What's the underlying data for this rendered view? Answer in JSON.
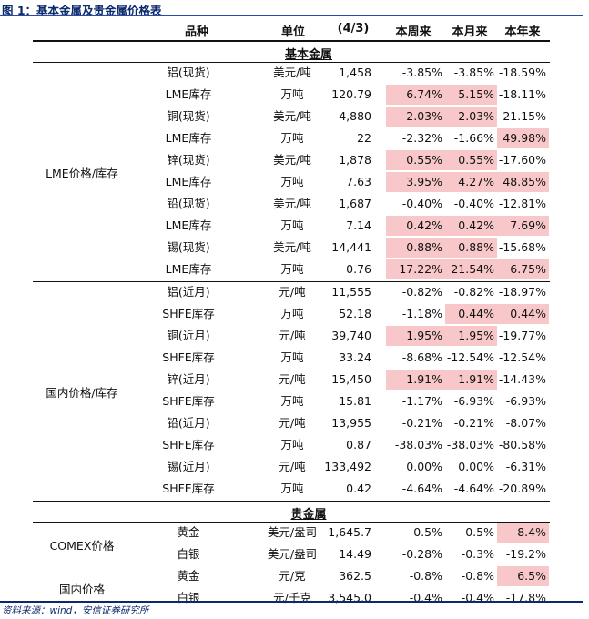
{
  "figure_title": "图 1：基本金属及贵金属价格表",
  "source": "资料来源：wind，安信证券研究所",
  "header": {
    "name": "品种",
    "unit": "单位",
    "date": "(4/3)",
    "week": "本周来",
    "month": "本月来",
    "year": "本年来"
  },
  "sections": {
    "base": "基本金属",
    "precious": "贵金属"
  },
  "highlight_color": "#f7c7c9",
  "groups": {
    "lme": "LME价格/库存",
    "domestic": "国内价格/库存",
    "comex": "COMEX价格",
    "domestic_price": "国内价格"
  },
  "lme_rows": [
    {
      "name": "铝(现货)",
      "unit": "美元/吨",
      "price": "1,458",
      "week": "-3.85%",
      "month": "-3.85%",
      "year": "-18.59%",
      "hl": [
        false,
        false,
        false
      ]
    },
    {
      "name": "LME库存",
      "unit": "万吨",
      "price": "120.79",
      "week": "6.74%",
      "month": "5.15%",
      "year": "-18.11%",
      "hl": [
        true,
        true,
        false
      ]
    },
    {
      "name": "铜(现货)",
      "unit": "美元/吨",
      "price": "4,880",
      "week": "2.03%",
      "month": "2.03%",
      "year": "-21.15%",
      "hl": [
        true,
        true,
        false
      ]
    },
    {
      "name": "LME库存",
      "unit": "万吨",
      "price": "22",
      "week": "-2.32%",
      "month": "-1.66%",
      "year": "49.98%",
      "hl": [
        false,
        false,
        true
      ]
    },
    {
      "name": "锌(现货)",
      "unit": "美元/吨",
      "price": "1,878",
      "week": "0.55%",
      "month": "0.55%",
      "year": "-17.60%",
      "hl": [
        true,
        true,
        false
      ]
    },
    {
      "name": "LME库存",
      "unit": "万吨",
      "price": "7.63",
      "week": "3.95%",
      "month": "4.27%",
      "year": "48.85%",
      "hl": [
        true,
        true,
        true
      ]
    },
    {
      "name": "铅(现货)",
      "unit": "美元/吨",
      "price": "1,687",
      "week": "-0.40%",
      "month": "-0.40%",
      "year": "-12.81%",
      "hl": [
        false,
        false,
        false
      ]
    },
    {
      "name": "LME库存",
      "unit": "万吨",
      "price": "7.14",
      "week": "0.42%",
      "month": "0.42%",
      "year": "7.69%",
      "hl": [
        true,
        true,
        true
      ]
    },
    {
      "name": "锡(现货)",
      "unit": "美元/吨",
      "price": "14,441",
      "week": "0.88%",
      "month": "0.88%",
      "year": "-15.68%",
      "hl": [
        true,
        true,
        false
      ]
    },
    {
      "name": "LME库存",
      "unit": "万吨",
      "price": "0.76",
      "week": "17.22%",
      "month": "21.54%",
      "year": "6.75%",
      "hl": [
        true,
        true,
        true
      ]
    }
  ],
  "domestic_rows": [
    {
      "name": "铝(近月)",
      "unit": "元/吨",
      "price": "11,555",
      "week": "-0.82%",
      "month": "-0.82%",
      "year": "-18.97%",
      "hl": [
        false,
        false,
        false
      ]
    },
    {
      "name": "SHFE库存",
      "unit": "万吨",
      "price": "52.18",
      "week": "-1.18%",
      "month": "0.44%",
      "year": "0.44%",
      "hl": [
        false,
        true,
        true
      ]
    },
    {
      "name": "铜(近月)",
      "unit": "元/吨",
      "price": "39,740",
      "week": "1.95%",
      "month": "1.95%",
      "year": "-19.77%",
      "hl": [
        true,
        true,
        false
      ]
    },
    {
      "name": "SHFE库存",
      "unit": "万吨",
      "price": "33.24",
      "week": "-8.68%",
      "month": "-12.54%",
      "year": "-12.54%",
      "hl": [
        false,
        false,
        false
      ]
    },
    {
      "name": "锌(近月)",
      "unit": "元/吨",
      "price": "15,450",
      "week": "1.91%",
      "month": "1.91%",
      "year": "-14.43%",
      "hl": [
        true,
        true,
        false
      ]
    },
    {
      "name": "SHFE库存",
      "unit": "万吨",
      "price": "15.81",
      "week": "-1.17%",
      "month": "-6.93%",
      "year": "-6.93%",
      "hl": [
        false,
        false,
        false
      ]
    },
    {
      "name": "铅(近月)",
      "unit": "元/吨",
      "price": "13,955",
      "week": "-0.21%",
      "month": "-0.21%",
      "year": "-8.07%",
      "hl": [
        false,
        false,
        false
      ]
    },
    {
      "name": "SHFE库存",
      "unit": "万吨",
      "price": "0.87",
      "week": "-38.03%",
      "month": "-38.03%",
      "year": "-80.58%",
      "hl": [
        false,
        false,
        false
      ]
    },
    {
      "name": "锡(近月)",
      "unit": "元/吨",
      "price": "133,492",
      "week": "0.00%",
      "month": "0.00%",
      "year": "-6.31%",
      "hl": [
        false,
        false,
        false
      ]
    },
    {
      "name": "SHFE库存",
      "unit": "万吨",
      "price": "0.42",
      "week": "-4.64%",
      "month": "-4.64%",
      "year": "-20.89%",
      "hl": [
        false,
        false,
        false
      ]
    }
  ],
  "precious_rows": [
    {
      "name": "黄金",
      "unit": "美元/盎司",
      "price": "1,645.7",
      "week": "-0.5%",
      "month": "-0.5%",
      "year": "8.4%",
      "hl": [
        false,
        false,
        true
      ]
    },
    {
      "name": "白银",
      "unit": "美元/盎司",
      "price": "14.49",
      "week": "-0.28%",
      "month": "-0.3%",
      "year": "-19.2%",
      "hl": [
        false,
        false,
        false
      ]
    },
    {
      "name": "黄金",
      "unit": "元/克",
      "price": "362.5",
      "week": "-0.8%",
      "month": "-0.8%",
      "year": "6.5%",
      "hl": [
        false,
        false,
        true
      ]
    },
    {
      "name": "白银",
      "unit": "元/千克",
      "price": "3,545.0",
      "week": "-0.4%",
      "month": "-0.4%",
      "year": "-17.8%",
      "hl": [
        false,
        false,
        false
      ]
    }
  ]
}
